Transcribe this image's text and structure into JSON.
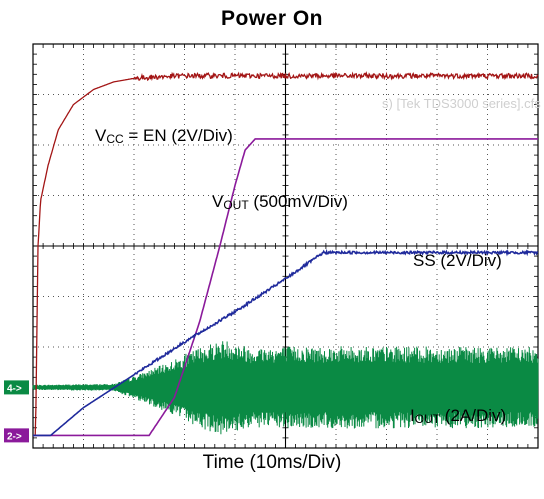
{
  "title": "Power On",
  "xlabel": "Time (10ms/Div)",
  "chart_data": {
    "type": "line",
    "title": "Power On",
    "xlabel": "Time (10ms/Div)",
    "ylabel": "",
    "xlim": [
      0,
      10
    ],
    "ylim": [
      -4,
      4
    ],
    "x_unit": "divisions (10ms/Div)",
    "y_unit": "divisions",
    "grid": true,
    "background_text": "s) [Tek TDS3000 series].cfs",
    "series": [
      {
        "name": "VCC = EN (2V/Div)",
        "label_main": "V",
        "label_sub": "CC",
        "label_rest": " = EN (2V/Div)",
        "color": "#a31515",
        "noise": 0.05,
        "x": [
          0,
          0.05,
          0.1,
          0.15,
          0.3,
          0.5,
          0.8,
          1.2,
          1.6,
          2.0,
          2.5,
          3.0,
          10
        ],
        "y": [
          -3.75,
          -3.75,
          0.0,
          0.9,
          1.6,
          2.3,
          2.8,
          3.1,
          3.25,
          3.32,
          3.35,
          3.37,
          3.37
        ]
      },
      {
        "name": "VOUT (500mV/Div)",
        "label_main": "V",
        "label_sub": "OUT",
        "label_rest": " (500mV/Div)",
        "color": "#8b1a9b",
        "noise": 0,
        "x": [
          0,
          2.3,
          2.8,
          3.3,
          3.7,
          4.0,
          4.2,
          4.4,
          10
        ],
        "y": [
          -3.75,
          -3.75,
          -3.0,
          -1.5,
          0.0,
          1.2,
          1.9,
          2.12,
          2.12
        ]
      },
      {
        "name": "SS (2V/Div)",
        "label_main": "SS (2V/Div)",
        "label_sub": "",
        "label_rest": "",
        "color": "#1f2a9c",
        "noise": 0.025,
        "x": [
          0,
          0.35,
          1.0,
          2.0,
          3.0,
          4.0,
          5.0,
          5.75,
          6.2,
          10
        ],
        "y": [
          -3.75,
          -3.75,
          -3.2,
          -2.55,
          -1.9,
          -1.3,
          -0.65,
          -0.13,
          -0.13,
          -0.13
        ]
      },
      {
        "name": "IOUT (2A/Div)",
        "label_main": "I",
        "label_sub": "OUT",
        "label_rest": " (2A/Div)",
        "color": "#0a8a44",
        "ripple_center": -2.8,
        "x": [
          0,
          1.6,
          2.2,
          2.8,
          3.4,
          3.8,
          4.3,
          5.0,
          10
        ],
        "amplitude": [
          0.05,
          0.07,
          0.3,
          0.55,
          0.85,
          0.95,
          0.8,
          0.82,
          0.8
        ]
      }
    ],
    "channel_markers": [
      {
        "label": "4->",
        "color": "#0a8a44",
        "y": -2.8
      },
      {
        "label": "2->",
        "color": "#8b1a9b",
        "y": -3.75
      }
    ]
  }
}
